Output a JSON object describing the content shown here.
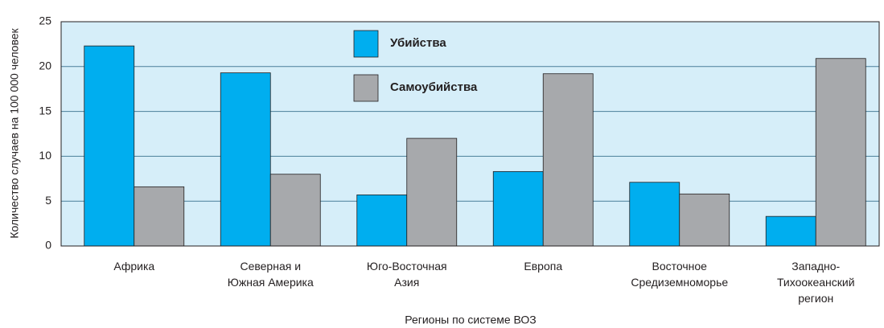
{
  "chart_data": {
    "type": "bar",
    "ylabel": "Количество случаев на 100 000 человек",
    "xlabel": "Регионы по системе ВОЗ",
    "categories": [
      "Африка",
      "Северная и\nЮжная Америка",
      "Юго-Восточная\nАзия",
      "Европа",
      "Восточное\nСредиземноморье",
      "Западно-\nТихоокеанский\nрегион"
    ],
    "series": [
      {
        "name": "Убийства",
        "color": "#00aeef",
        "values": [
          22.3,
          19.3,
          5.7,
          8.3,
          7.1,
          3.3
        ]
      },
      {
        "name": "Самоубийства",
        "color": "#a7a9ac",
        "values": [
          6.6,
          8.0,
          12.0,
          19.2,
          5.8,
          20.9
        ]
      }
    ],
    "ylim": [
      0,
      25
    ],
    "yticks": [
      0,
      5,
      10,
      15,
      20,
      25
    ],
    "grid": true,
    "legend": "top"
  }
}
